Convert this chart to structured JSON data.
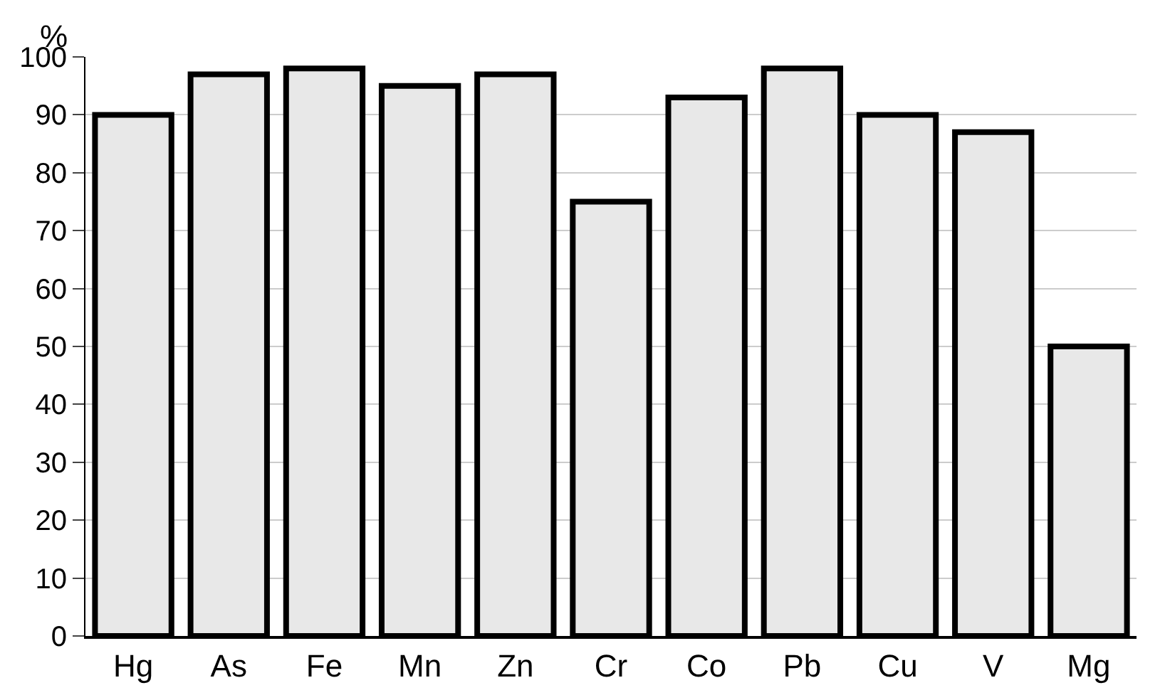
{
  "chart_data": {
    "type": "bar",
    "ylabel": "%",
    "categories": [
      "Hg",
      "As",
      "Fe",
      "Mn",
      "Zn",
      "Cr",
      "Co",
      "Pb",
      "Cu",
      "V",
      "Mg"
    ],
    "values": [
      90,
      97,
      98,
      95,
      97,
      75,
      93,
      98,
      90,
      87,
      50
    ],
    "color": "#e8e8e8",
    "ylim": [
      0,
      100
    ],
    "yticks": [
      0,
      10,
      20,
      30,
      40,
      50,
      60,
      70,
      80,
      90,
      100
    ],
    "grid": "y"
  }
}
